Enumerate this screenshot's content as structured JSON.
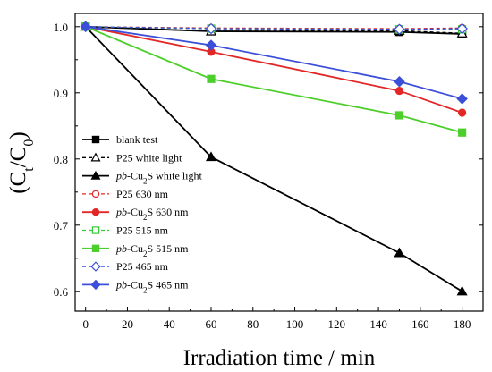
{
  "chart_data": {
    "type": "line",
    "x": [
      0,
      60,
      150,
      180
    ],
    "xlabel": "Irradiation time / min",
    "ylabel": "(Ct/C0)",
    "xlim": [
      -5,
      190
    ],
    "ylim": [
      0.57,
      1.02
    ],
    "xticks": [
      "0",
      "20",
      "40",
      "60",
      "80",
      "100",
      "120",
      "140",
      "160",
      "180"
    ],
    "xtick_values": [
      0,
      20,
      40,
      60,
      80,
      100,
      120,
      140,
      160,
      180
    ],
    "yticks": [
      "0.6",
      "0.7",
      "0.8",
      "0.9",
      "1.0"
    ],
    "ytick_values": [
      0.6,
      0.7,
      0.8,
      0.9,
      1.0
    ],
    "grid": false,
    "legend_position": "left",
    "series": [
      {
        "name": "blank test",
        "values": [
          1.0,
          0.993,
          0.992,
          0.989
        ],
        "color": "#000000",
        "dash": "solid",
        "marker": "square",
        "filled": true
      },
      {
        "name": "P25 white light",
        "values": [
          1.0,
          0.993,
          0.994,
          0.99
        ],
        "color": "#000000",
        "dash": "dashed",
        "marker": "triangle",
        "filled": false
      },
      {
        "name": "pb-Cu2S white light",
        "values": [
          1.0,
          0.803,
          0.658,
          0.6
        ],
        "color": "#000000",
        "dash": "solid",
        "marker": "triangle",
        "filled": true
      },
      {
        "name": "P25 630 nm",
        "values": [
          1.0,
          0.998,
          0.997,
          0.998
        ],
        "color": "#e32626",
        "dash": "dashed",
        "marker": "circle",
        "filled": false
      },
      {
        "name": "pb-Cu2S 630 nm",
        "values": [
          1.0,
          0.962,
          0.903,
          0.87
        ],
        "color": "#e32626",
        "dash": "solid",
        "marker": "circle",
        "filled": true
      },
      {
        "name": "P25 515 nm",
        "values": [
          1.0,
          0.997,
          0.996,
          0.996
        ],
        "color": "#33cc33",
        "dash": "dashed",
        "marker": "square",
        "filled": false
      },
      {
        "name": "pb-Cu2S 515 nm",
        "values": [
          1.0,
          0.921,
          0.866,
          0.84
        ],
        "color": "#4ccf2a",
        "dash": "solid",
        "marker": "square",
        "filled": true
      },
      {
        "name": "P25 465 nm",
        "values": [
          1.0,
          0.997,
          0.996,
          0.997
        ],
        "color": "#3b4fd9",
        "dash": "dashed",
        "marker": "diamond",
        "filled": false
      },
      {
        "name": "pb-Cu2S 465 nm",
        "values": [
          1.0,
          0.972,
          0.917,
          0.891
        ],
        "color": "#3b4fd9",
        "dash": "solid",
        "marker": "diamond",
        "filled": true
      }
    ],
    "legend": [
      {
        "prefix": "",
        "italic": "",
        "chem": "",
        "sub": "",
        "rest": "blank test"
      },
      {
        "prefix": "P25 white light",
        "italic": "",
        "chem": "",
        "sub": "",
        "rest": ""
      },
      {
        "prefix": "",
        "italic": "pb",
        "chem": "-Cu",
        "sub": "2",
        "rest": "S white light"
      },
      {
        "prefix": "P25 630 nm",
        "italic": "",
        "chem": "",
        "sub": "",
        "rest": ""
      },
      {
        "prefix": "",
        "italic": "pb",
        "chem": "-Cu",
        "sub": "2",
        "rest": "S 630 nm"
      },
      {
        "prefix": "P25 515 nm",
        "italic": "",
        "chem": "",
        "sub": "",
        "rest": ""
      },
      {
        "prefix": "",
        "italic": "pb",
        "chem": "-Cu",
        "sub": "2",
        "rest": "S 515 nm"
      },
      {
        "prefix": "P25 465 nm",
        "italic": "",
        "chem": "",
        "sub": "",
        "rest": ""
      },
      {
        "prefix": "",
        "italic": "pb",
        "chem": "-Cu",
        "sub": "2",
        "rest": "S 465 nm"
      }
    ],
    "ylabel_parts": {
      "open": "(C",
      "sub1": "t",
      "slash": "/C",
      "sub2": "0",
      "close": ")"
    }
  }
}
